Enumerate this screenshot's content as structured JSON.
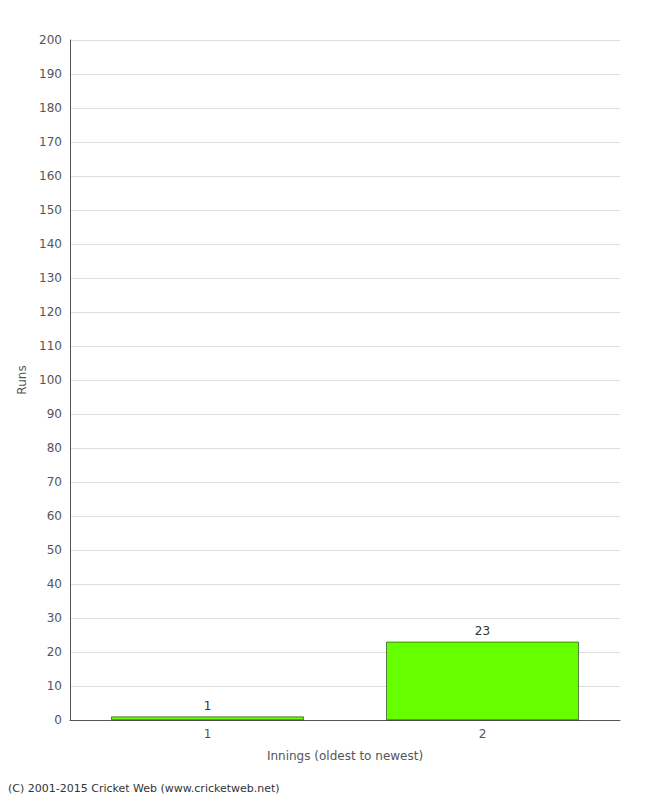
{
  "chart_data": {
    "type": "bar",
    "categories": [
      "1",
      "2"
    ],
    "values": [
      1,
      23
    ],
    "color": "#66ff00",
    "ylabel": "Runs",
    "xlabel": "Innings (oldest to newest)",
    "ylim": [
      0,
      200
    ],
    "yticks": [
      0,
      10,
      20,
      30,
      40,
      50,
      60,
      70,
      80,
      90,
      100,
      110,
      120,
      130,
      140,
      150,
      160,
      170,
      180,
      190,
      200
    ],
    "grid": true,
    "data_labels": true,
    "annotations": [
      "(C) 2001-2015 Cricket Web (www.cricketweb.net)"
    ]
  }
}
